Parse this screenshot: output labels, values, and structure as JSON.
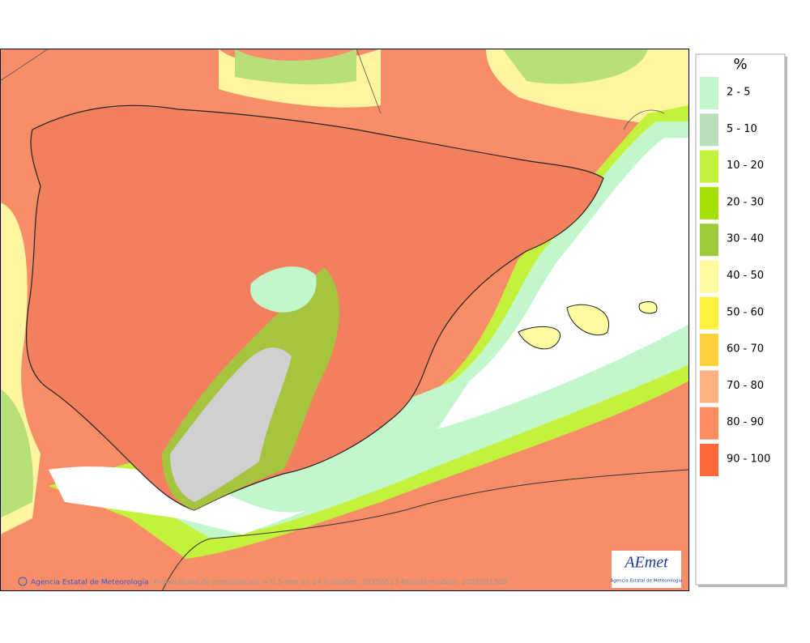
{
  "legend": {
    "title": "%",
    "items": [
      {
        "label": "2 - 5",
        "color": "#c2f6cb"
      },
      {
        "label": "5 - 10",
        "color": "#b9dfba"
      },
      {
        "label": "10 - 20",
        "color": "#c4f23c"
      },
      {
        "label": "20 - 30",
        "color": "#a6e000"
      },
      {
        "label": "30 - 40",
        "color": "#9ccc3c"
      },
      {
        "label": "40 - 50",
        "color": "#fff9a0"
      },
      {
        "label": "50 - 60",
        "color": "#fff23c"
      },
      {
        "label": "60 - 70",
        "color": "#ffd23c"
      },
      {
        "label": "70 - 80",
        "color": "#ffb186"
      },
      {
        "label": "80 - 90",
        "color": "#ff8d64"
      },
      {
        "label": "90 - 100",
        "color": "#ff6a3a"
      }
    ]
  },
  "footer": {
    "credit": "Agencia Estatal de Meteorología",
    "caption": "Probabilidad de precipitación > 0,5 mm en 24 h Validez: 20250513 Pasada modelo: 2025051300"
  },
  "logo": {
    "text": "AEmet",
    "subtitle": "Agencia Estatal de Meteorología"
  }
}
